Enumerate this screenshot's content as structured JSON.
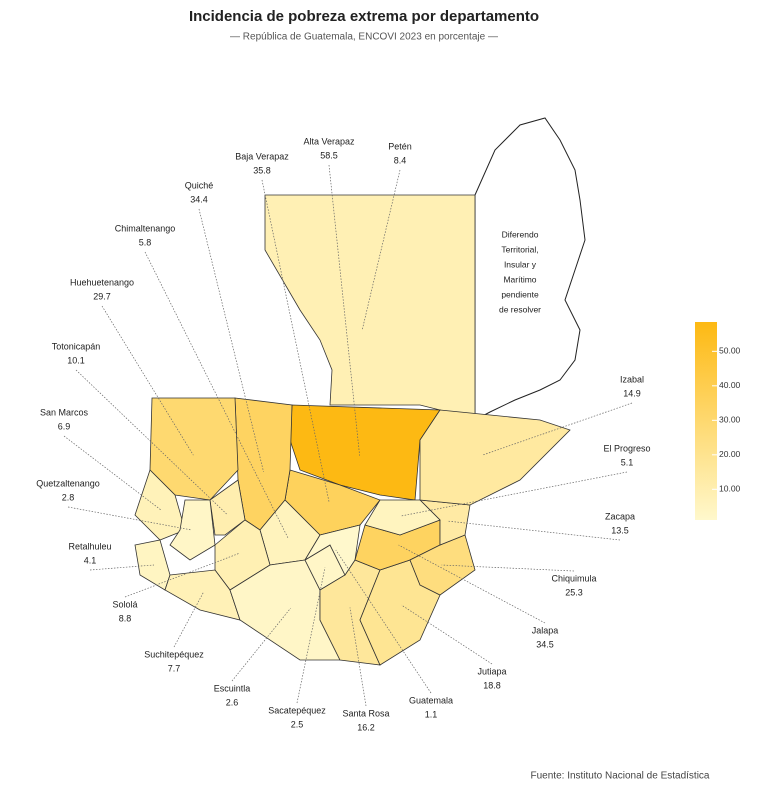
{
  "chart_data": {
    "type": "choropleth",
    "title": "Incidencia de pobreza extrema por departamento",
    "subtitle": "— República de Guatemala, ENCOVI 2023 en porcentaje —",
    "source": "Fuente: Instituto Nacional de Estadística",
    "annotation_lines": [
      "Diferendo",
      "Territorial,",
      "Insular y",
      "Marítimo",
      "pendiente",
      "de resolver"
    ],
    "categories": [
      "Petén",
      "Alta Verapaz",
      "Baja Verapaz",
      "Quiché",
      "Chimaltenango",
      "Huehuetenango",
      "Totonicapán",
      "San Marcos",
      "Quetzaltenango",
      "Retalhuleu",
      "Sololá",
      "Suchitepéquez",
      "Escuintla",
      "Sacatepéquez",
      "Santa Rosa",
      "Guatemala",
      "Jutiapa",
      "Jalapa",
      "Chiquimula",
      "Zacapa",
      "El Progreso",
      "Izabal"
    ],
    "values": [
      8.4,
      58.5,
      35.8,
      34.4,
      5.8,
      29.7,
      10.1,
      6.9,
      2.8,
      4.1,
      8.8,
      7.7,
      2.6,
      2.5,
      16.2,
      1.1,
      18.8,
      34.5,
      25.3,
      13.5,
      5.1,
      14.9
    ],
    "color_low": "#fff8cc",
    "color_high": "#fdb913",
    "clim": [
      1.1,
      58.5
    ],
    "cticks": [
      {
        "value": 10,
        "label": "10.00"
      },
      {
        "value": 20,
        "label": "20.00"
      },
      {
        "value": 30,
        "label": "30.00"
      },
      {
        "value": 40,
        "label": "40.00"
      },
      {
        "value": 50,
        "label": "50.00"
      }
    ]
  }
}
